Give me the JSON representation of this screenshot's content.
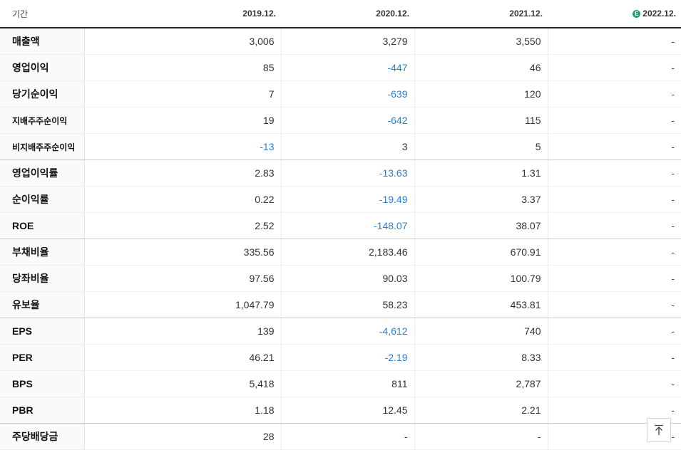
{
  "table": {
    "period_label": "기간",
    "columns": [
      {
        "label": "2019.12.",
        "estimate": false
      },
      {
        "label": "2020.12.",
        "estimate": false
      },
      {
        "label": "2021.12.",
        "estimate": false
      },
      {
        "label": "2022.12.",
        "estimate": true,
        "badge": "E"
      }
    ],
    "rows": [
      {
        "label": "매출액",
        "values": [
          "3,006",
          "3,279",
          "3,550",
          "-"
        ]
      },
      {
        "label": "영업이익",
        "values": [
          "85",
          "-447",
          "46",
          "-"
        ]
      },
      {
        "label": "당기순이익",
        "values": [
          "7",
          "-639",
          "120",
          "-"
        ]
      },
      {
        "label": "지배주주순이익",
        "values": [
          "19",
          "-642",
          "115",
          "-"
        ]
      },
      {
        "label": "비지배주주순이익",
        "values": [
          "-13",
          "3",
          "5",
          "-"
        ]
      },
      {
        "label": "영업이익률",
        "values": [
          "2.83",
          "-13.63",
          "1.31",
          "-"
        ]
      },
      {
        "label": "순이익률",
        "values": [
          "0.22",
          "-19.49",
          "3.37",
          "-"
        ]
      },
      {
        "label": "ROE",
        "values": [
          "2.52",
          "-148.07",
          "38.07",
          "-"
        ]
      },
      {
        "label": "부채비율",
        "values": [
          "335.56",
          "2,183.46",
          "670.91",
          "-"
        ]
      },
      {
        "label": "당좌비율",
        "values": [
          "97.56",
          "90.03",
          "100.79",
          "-"
        ]
      },
      {
        "label": "유보율",
        "values": [
          "1,047.79",
          "58.23",
          "453.81",
          "-"
        ]
      },
      {
        "label": "EPS",
        "values": [
          "139",
          "-4,612",
          "740",
          "-"
        ]
      },
      {
        "label": "PER",
        "values": [
          "46.21",
          "-2.19",
          "8.33",
          "-"
        ]
      },
      {
        "label": "BPS",
        "values": [
          "5,418",
          "811",
          "2,787",
          "-"
        ]
      },
      {
        "label": "PBR",
        "values": [
          "1.18",
          "12.45",
          "2.21",
          "-"
        ]
      },
      {
        "label": "주당배당금",
        "values": [
          "28",
          "-",
          "-",
          "-"
        ]
      }
    ],
    "group_end_rows": [
      4,
      7,
      10,
      14
    ],
    "small_label_rows": [
      3,
      4
    ]
  },
  "colors": {
    "negative": "#2a7fd4",
    "estimate_badge": "#22a06b"
  },
  "icons": {
    "scroll_top": "arrow-up-bar-icon"
  }
}
